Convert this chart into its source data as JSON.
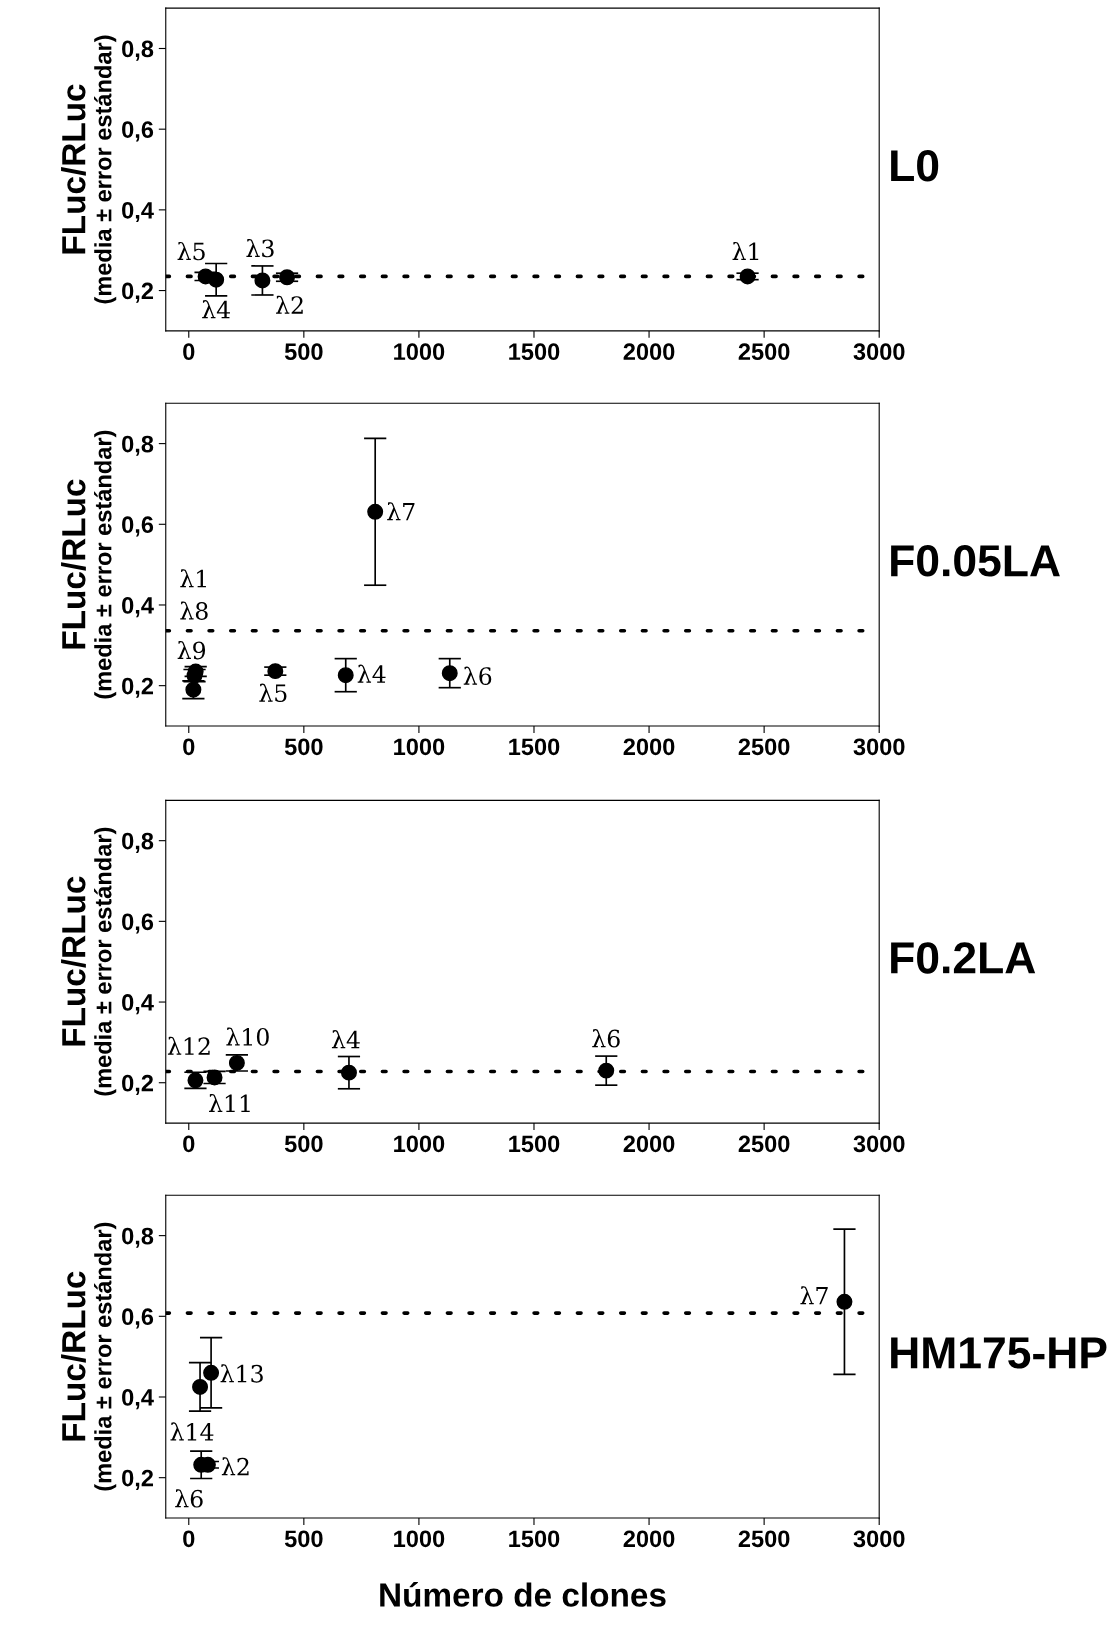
{
  "chart_data": [
    {
      "type": "scatter",
      "subtitle": "L0",
      "ylabel": "FLuc/RLuc\n(media ± error estándar)",
      "xlim": [
        -100,
        3000
      ],
      "xticks": [
        0,
        500,
        1000,
        1500,
        2000,
        2500,
        3000
      ],
      "ylim": [
        0.1,
        0.9
      ],
      "yticks": [
        {
          "value": 0.2,
          "label": "0,2"
        },
        {
          "value": 0.4,
          "label": "0,4"
        },
        {
          "value": 0.6,
          "label": "0,6"
        },
        {
          "value": 0.8,
          "label": "0,8"
        }
      ],
      "grid": false,
      "legend": false,
      "marker": "circle",
      "series": [
        {
          "color": "#000000",
          "x": [
            73,
            119,
            320,
            427,
            2428
          ],
          "values": [
            0.235,
            0.227,
            0.225,
            0.233,
            0.235
          ],
          "errors": [
            0.01,
            0.04,
            0.036,
            0.01,
            0.008
          ]
        }
      ],
      "ref_lines": [
        {
          "axis": "y",
          "value": 0.235,
          "color": "#000000",
          "line_style": "dotted"
        }
      ],
      "annotations": [
        {
          "text": "λ5",
          "x": 73,
          "y": 0.235
        },
        {
          "text": "λ4",
          "x": 119,
          "y": 0.227
        },
        {
          "text": "λ3",
          "x": 320,
          "y": 0.225
        },
        {
          "text": "λ2",
          "x": 427,
          "y": 0.233
        },
        {
          "text": "λ1",
          "x": 2428,
          "y": 0.235
        }
      ]
    },
    {
      "type": "scatter",
      "subtitle": "F0.05LA",
      "ylabel": "FLuc/RLuc\n(media ± error estándar)",
      "xlim": [
        -100,
        3000
      ],
      "xticks": [
        0,
        500,
        1000,
        1500,
        2000,
        2500,
        3000
      ],
      "ylim": [
        0.1,
        0.9
      ],
      "yticks": [
        {
          "value": 0.2,
          "label": "0,2"
        },
        {
          "value": 0.4,
          "label": "0,4"
        },
        {
          "value": 0.6,
          "label": "0,6"
        },
        {
          "value": 0.8,
          "label": "0,8"
        }
      ],
      "grid": false,
      "legend": false,
      "marker": "circle",
      "series": [
        {
          "color": "#000000",
          "x": [
            30,
            25,
            20,
            376,
            682,
            810,
            1134
          ],
          "values": [
            0.235,
            0.225,
            0.19,
            0.236,
            0.226,
            0.631,
            0.231
          ],
          "errors": [
            0.012,
            0.015,
            0.022,
            0.01,
            0.041,
            0.182,
            0.036
          ]
        }
      ],
      "ref_lines": [
        {
          "axis": "y",
          "value": 0.336,
          "color": "#000000",
          "line_style": "dotted"
        }
      ],
      "annotations": [
        {
          "text": "λ7",
          "x": 810,
          "y": 0.631
        },
        "λ1",
        "λ8",
        {
          "text": "λ9",
          "x": 30,
          "y": 0.235
        },
        {
          "text": "λ5",
          "x": 376,
          "y": 0.236
        },
        {
          "text": "λ4",
          "x": 682,
          "y": 0.226
        },
        {
          "text": "λ6",
          "x": 1134,
          "y": 0.231
        }
      ]
    },
    {
      "type": "scatter",
      "subtitle": "F0.2LA",
      "ylabel": "FLuc/RLuc\n(media ± error estándar)",
      "xlim": [
        -100,
        3000
      ],
      "xticks": [
        0,
        500,
        1000,
        1500,
        2000,
        2500,
        3000
      ],
      "ylim": [
        0.1,
        0.9
      ],
      "yticks": [
        {
          "value": 0.2,
          "label": "0,2"
        },
        {
          "value": 0.4,
          "label": "0,4"
        },
        {
          "value": 0.6,
          "label": "0,6"
        },
        {
          "value": 0.8,
          "label": "0,8"
        }
      ],
      "grid": false,
      "legend": false,
      "marker": "circle",
      "series": [
        {
          "color": "#000000",
          "x": [
            29,
            112,
            209,
            696,
            1814
          ],
          "values": [
            0.206,
            0.213,
            0.249,
            0.225,
            0.23
          ],
          "errors": [
            0.02,
            0.015,
            0.02,
            0.04,
            0.036
          ]
        }
      ],
      "ref_lines": [
        {
          "axis": "y",
          "value": 0.228,
          "color": "#000000",
          "line_style": "dotted"
        }
      ],
      "annotations": [
        {
          "text": "λ12",
          "x": 29,
          "y": 0.206
        },
        {
          "text": "λ10",
          "x": 209,
          "y": 0.249
        },
        {
          "text": "λ11",
          "x": 112,
          "y": 0.213
        },
        {
          "text": "λ4",
          "x": 696,
          "y": 0.225
        },
        {
          "text": "λ6",
          "x": 1814,
          "y": 0.23
        }
      ]
    },
    {
      "type": "scatter",
      "subtitle": "HM175-HP",
      "xlabel": "Número de clones",
      "ylabel": "FLuc/RLuc\n(media ± error estándar)",
      "xlim": [
        -100,
        3000
      ],
      "xticks": [
        0,
        500,
        1000,
        1500,
        2000,
        2500,
        3000
      ],
      "ylim": [
        0.1,
        0.9
      ],
      "yticks": [
        {
          "value": 0.2,
          "label": "0,2"
        },
        {
          "value": 0.4,
          "label": "0,4"
        },
        {
          "value": 0.6,
          "label": "0,6"
        },
        {
          "value": 0.8,
          "label": "0,8"
        }
      ],
      "grid": false,
      "legend": false,
      "marker": "circle",
      "series": [
        {
          "color": "#000000",
          "x": [
            49,
            97,
            54,
            83,
            2849
          ],
          "values": [
            0.425,
            0.46,
            0.232,
            0.232,
            0.636
          ],
          "errors": [
            0.06,
            0.087,
            0.034,
            0.008,
            0.18
          ]
        }
      ],
      "ref_lines": [
        {
          "axis": "y",
          "value": 0.608,
          "color": "#000000",
          "line_style": "dotted"
        }
      ],
      "annotations": [
        {
          "text": "λ7",
          "x": 2849,
          "y": 0.636
        },
        {
          "text": "λ13",
          "x": 97,
          "y": 0.46
        },
        {
          "text": "λ14",
          "x": 49,
          "y": 0.425
        },
        {
          "text": "λ2",
          "x": 83,
          "y": 0.232
        },
        {
          "text": "λ6",
          "x": 54,
          "y": 0.232
        }
      ]
    }
  ]
}
